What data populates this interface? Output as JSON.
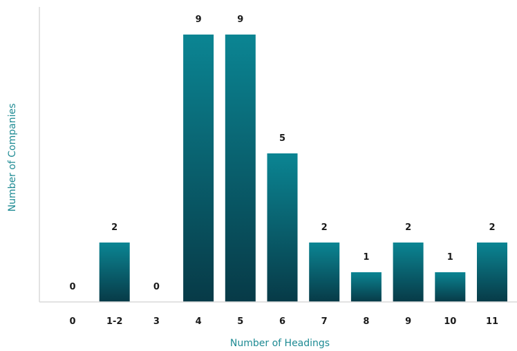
{
  "chart_data": {
    "type": "bar",
    "categories": [
      "0",
      "1-2",
      "3",
      "4",
      "5",
      "6",
      "7",
      "8",
      "9",
      "10",
      "11"
    ],
    "values": [
      0,
      2,
      0,
      9,
      9,
      5,
      2,
      1,
      2,
      1,
      2
    ],
    "xlabel": "Number of Headings",
    "ylabel": "Number of Companies",
    "ylim": [
      0,
      9
    ],
    "grid": false,
    "legend": "none",
    "bar_color_light": "#0b8593",
    "bar_color_dark": "#073a47"
  }
}
